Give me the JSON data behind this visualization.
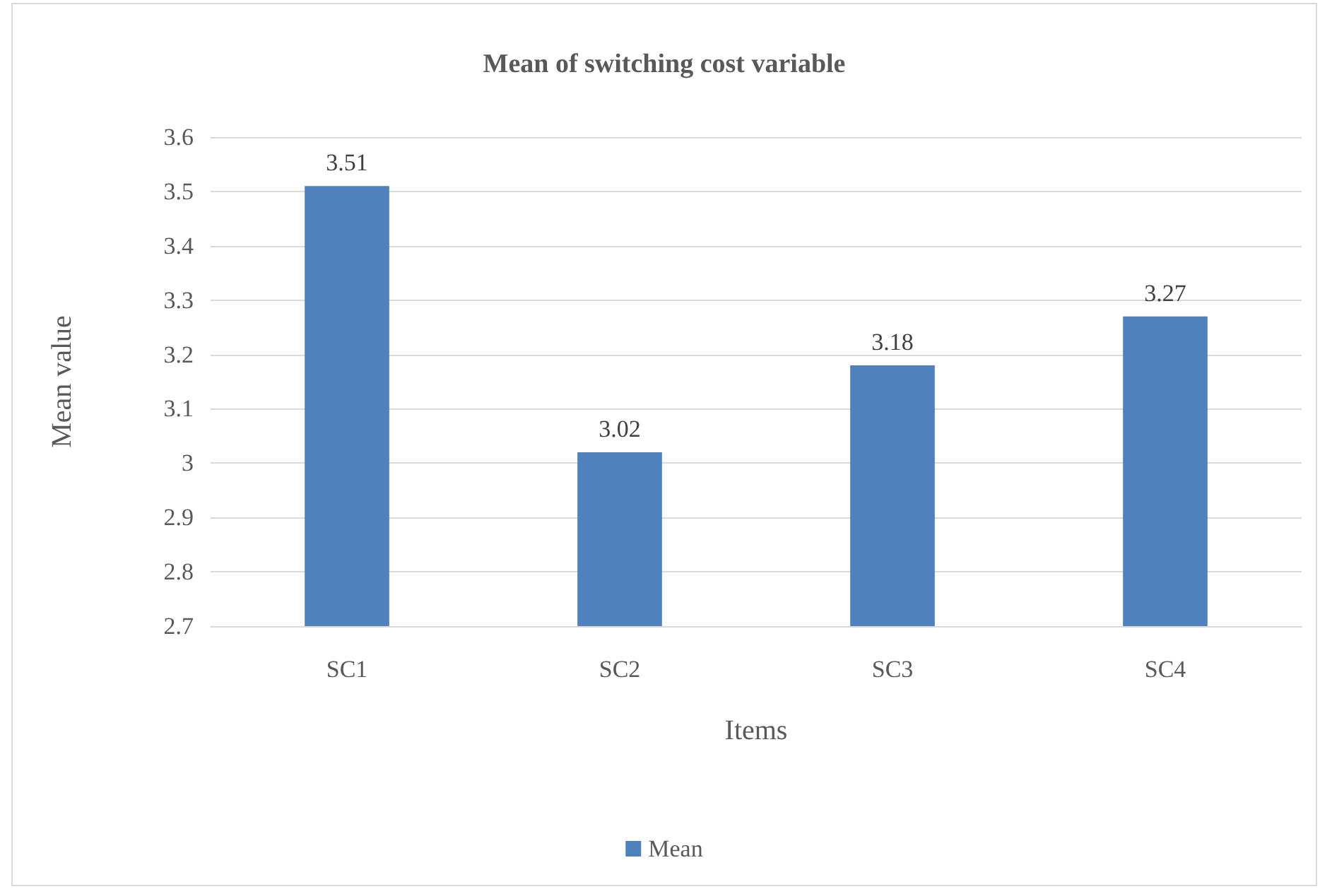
{
  "chart_data": {
    "type": "bar",
    "title": "Mean of switching cost variable",
    "xlabel": "Items",
    "ylabel": "Mean value",
    "categories": [
      "SC1",
      "SC2",
      "SC3",
      "SC4"
    ],
    "series": [
      {
        "name": "Mean",
        "color": "#4f81bd",
        "values": [
          3.51,
          3.02,
          3.18,
          3.27
        ]
      }
    ],
    "ylim": [
      2.7,
      3.6
    ],
    "yticks": [
      2.7,
      2.8,
      2.9,
      3,
      3.1,
      3.2,
      3.3,
      3.4,
      3.5,
      3.6
    ],
    "grid": "y",
    "legend": "bottom",
    "data_labels": true
  }
}
